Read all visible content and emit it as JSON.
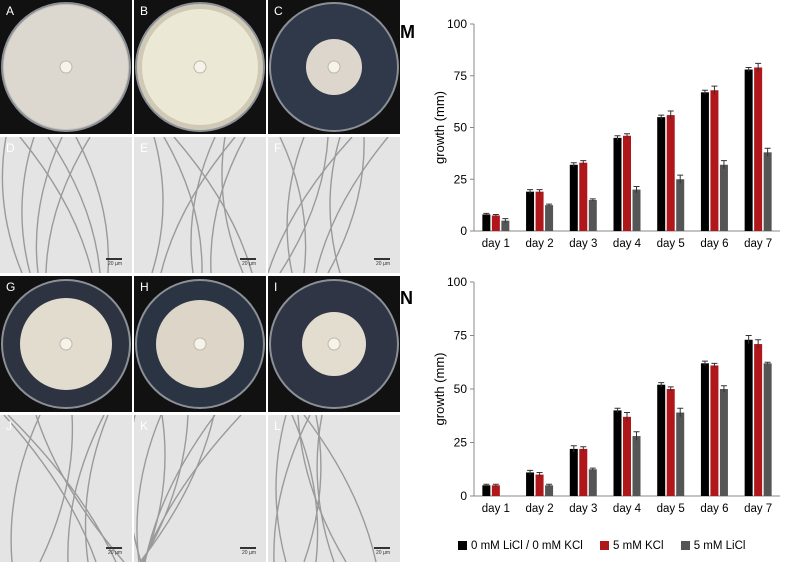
{
  "photo_panels": [
    {
      "letter": "A",
      "kind": "plate",
      "plate": "#c9c4bb",
      "colony": "#dcd8d0",
      "r": 62
    },
    {
      "letter": "B",
      "kind": "plate",
      "plate": "#cfc9b6",
      "colony": "#ece8d6",
      "r": 58
    },
    {
      "letter": "C",
      "kind": "plate",
      "plate": "#30394a",
      "colony": "#ddd6cc",
      "r": 28
    },
    {
      "letter": "D",
      "kind": "micro",
      "scale": "20 µm"
    },
    {
      "letter": "E",
      "kind": "micro",
      "scale": "20 µm"
    },
    {
      "letter": "F",
      "kind": "micro",
      "scale": "20 µm"
    },
    {
      "letter": "G",
      "kind": "plate",
      "plate": "#2d3340",
      "colony": "#e2dccf",
      "r": 46
    },
    {
      "letter": "H",
      "kind": "plate",
      "plate": "#2b3442",
      "colony": "#ddd6c8",
      "r": 44
    },
    {
      "letter": "I",
      "kind": "plate",
      "plate": "#2f3545",
      "colony": "#e3ddd0",
      "r": 32
    },
    {
      "letter": "J",
      "kind": "micro",
      "scale": "20 µm"
    },
    {
      "letter": "K",
      "kind": "micro",
      "scale": "20 µm"
    },
    {
      "letter": "L",
      "kind": "micro",
      "scale": "20 µm"
    }
  ],
  "colors": {
    "s1": "#000000",
    "s2": "#b0171a",
    "s3": "#555555"
  },
  "legend": [
    "0 mM LiCl / 0 mM KCl",
    "5 mM  KCl",
    "5 mM  LiCl"
  ],
  "chart_data": [
    {
      "type": "bar",
      "panel": "M",
      "categories": [
        "day 1",
        "day 2",
        "day 3",
        "day 4",
        "day 5",
        "day 6",
        "day 7"
      ],
      "ylabel": "growth (mm)",
      "ylim": [
        0,
        100
      ],
      "yticks": [
        0,
        25,
        50,
        75,
        100
      ],
      "series": [
        {
          "name": "0 mM LiCl / 0 mM KCl",
          "values": [
            8,
            19,
            32,
            45,
            55,
            67,
            78
          ],
          "err": [
            0.5,
            1,
            1,
            1,
            1,
            1,
            1
          ]
        },
        {
          "name": "5 mM  KCl",
          "values": [
            7.5,
            19,
            33,
            46,
            56,
            68,
            79
          ],
          "err": [
            0.5,
            1,
            1,
            1,
            2,
            2,
            2
          ]
        },
        {
          "name": "5 mM  LiCl",
          "values": [
            5,
            12.5,
            15,
            20,
            25,
            32,
            38
          ],
          "err": [
            1,
            0.5,
            0.5,
            1.5,
            2,
            2,
            2
          ]
        }
      ]
    },
    {
      "type": "bar",
      "panel": "N",
      "categories": [
        "day 1",
        "day 2",
        "day 3",
        "day 4",
        "day 5",
        "day 6",
        "day 7"
      ],
      "ylabel": "growth (mm)",
      "ylim": [
        0,
        100
      ],
      "yticks": [
        0,
        25,
        50,
        75,
        100
      ],
      "series": [
        {
          "name": "0 mM LiCl / 0 mM KCl",
          "values": [
            5,
            11,
            22,
            40,
            52,
            62,
            73
          ],
          "err": [
            0.5,
            1,
            1.5,
            1,
            1,
            1,
            2
          ]
        },
        {
          "name": "5 mM  KCl",
          "values": [
            5,
            10,
            22,
            37,
            50,
            61,
            71
          ],
          "err": [
            0.5,
            1,
            1,
            2,
            1,
            1,
            2
          ]
        },
        {
          "name": "5 mM  LiCl",
          "values": [
            0,
            5,
            12.5,
            28,
            39,
            50,
            62
          ],
          "err": [
            0,
            0.5,
            0.5,
            2,
            2,
            1.5,
            0.5
          ]
        }
      ]
    }
  ]
}
